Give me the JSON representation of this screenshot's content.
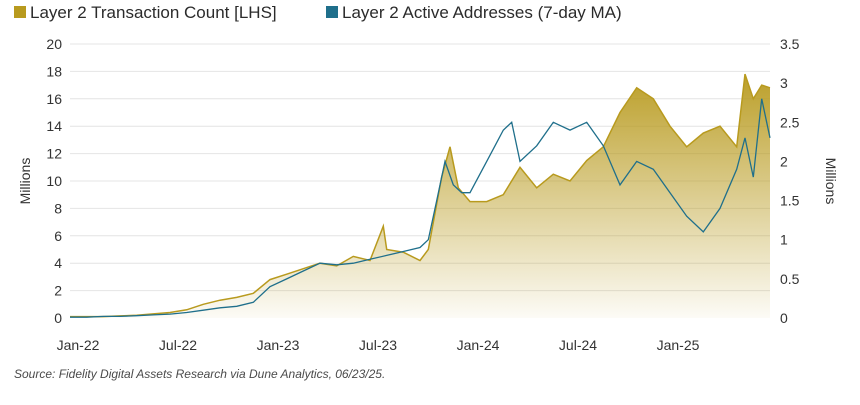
{
  "chart_data": {
    "type": "area",
    "title": "",
    "x_ticks": [
      "Jan-22",
      "Jul-22",
      "Jan-23",
      "Jul-23",
      "Jan-24",
      "Jul-24",
      "Jan-25"
    ],
    "x_range": [
      0,
      42
    ],
    "y_left": {
      "label": "Millions",
      "ticks": [
        "0",
        "2",
        "4",
        "6",
        "8",
        "10",
        "12",
        "14",
        "16",
        "18",
        "20"
      ],
      "range": [
        0,
        20
      ]
    },
    "y_right": {
      "label": "Millions",
      "ticks": [
        "0",
        "0.5",
        "1",
        "1.5",
        "2",
        "2.5",
        "3",
        "3.5"
      ],
      "range": [
        0,
        3.5
      ]
    },
    "series": [
      {
        "name": "Layer 2 Transaction Count [LHS]",
        "axis": "left",
        "color": "#b89a1e",
        "points": [
          [
            0,
            0.1
          ],
          [
            1,
            0.1
          ],
          [
            2,
            0.1
          ],
          [
            3,
            0.15
          ],
          [
            4,
            0.2
          ],
          [
            5,
            0.3
          ],
          [
            6,
            0.4
          ],
          [
            7,
            0.6
          ],
          [
            8,
            1.0
          ],
          [
            9,
            1.3
          ],
          [
            10,
            1.5
          ],
          [
            11,
            1.8
          ],
          [
            12,
            2.8
          ],
          [
            13,
            3.2
          ],
          [
            14,
            3.6
          ],
          [
            15,
            4.0
          ],
          [
            16,
            3.8
          ],
          [
            17,
            4.5
          ],
          [
            18,
            4.2
          ],
          [
            18.8,
            6.7
          ],
          [
            19,
            5.0
          ],
          [
            20,
            4.8
          ],
          [
            21,
            4.2
          ],
          [
            21.5,
            5.0
          ],
          [
            22.3,
            10.3
          ],
          [
            22.8,
            12.5
          ],
          [
            23.3,
            9.5
          ],
          [
            24,
            8.5
          ],
          [
            25,
            8.5
          ],
          [
            26,
            9.0
          ],
          [
            27,
            11.0
          ],
          [
            28,
            9.5
          ],
          [
            29,
            10.5
          ],
          [
            30,
            10.0
          ],
          [
            31,
            11.5
          ],
          [
            32,
            12.5
          ],
          [
            33,
            15.0
          ],
          [
            34,
            16.8
          ],
          [
            35,
            16.0
          ],
          [
            36,
            14.0
          ],
          [
            37,
            12.5
          ],
          [
            38,
            13.5
          ],
          [
            39,
            14.0
          ],
          [
            40,
            12.5
          ],
          [
            40.5,
            17.8
          ],
          [
            41,
            16.0
          ],
          [
            41.5,
            17.0
          ],
          [
            42,
            16.8
          ]
        ]
      },
      {
        "name": "Layer 2 Active Addresses (7-day MA)",
        "axis": "right",
        "color": "#1f6f8b",
        "points": [
          [
            0,
            0.01
          ],
          [
            1,
            0.01
          ],
          [
            2,
            0.02
          ],
          [
            3,
            0.02
          ],
          [
            4,
            0.03
          ],
          [
            5,
            0.04
          ],
          [
            6,
            0.05
          ],
          [
            7,
            0.07
          ],
          [
            8,
            0.1
          ],
          [
            9,
            0.13
          ],
          [
            10,
            0.15
          ],
          [
            11,
            0.2
          ],
          [
            12,
            0.4
          ],
          [
            13,
            0.5
          ],
          [
            14,
            0.6
          ],
          [
            15,
            0.7
          ],
          [
            16,
            0.68
          ],
          [
            17,
            0.7
          ],
          [
            18,
            0.75
          ],
          [
            19,
            0.8
          ],
          [
            20,
            0.85
          ],
          [
            21,
            0.9
          ],
          [
            21.5,
            1.0
          ],
          [
            22,
            1.5
          ],
          [
            22.5,
            2.0
          ],
          [
            23,
            1.7
          ],
          [
            23.5,
            1.6
          ],
          [
            24,
            1.6
          ],
          [
            25,
            2.0
          ],
          [
            25.5,
            2.2
          ],
          [
            26,
            2.4
          ],
          [
            26.5,
            2.5
          ],
          [
            27,
            2.0
          ],
          [
            28,
            2.2
          ],
          [
            29,
            2.5
          ],
          [
            30,
            2.4
          ],
          [
            31,
            2.5
          ],
          [
            32,
            2.2
          ],
          [
            33,
            1.7
          ],
          [
            34,
            2.0
          ],
          [
            35,
            1.9
          ],
          [
            36,
            1.6
          ],
          [
            37,
            1.3
          ],
          [
            38,
            1.1
          ],
          [
            39,
            1.4
          ],
          [
            40,
            1.9
          ],
          [
            40.5,
            2.3
          ],
          [
            41,
            1.8
          ],
          [
            41.5,
            2.8
          ],
          [
            42,
            2.3
          ]
        ]
      }
    ],
    "source": "Source: Fidelity Digital Assets Research via Dune Analytics, 06/23/25."
  }
}
